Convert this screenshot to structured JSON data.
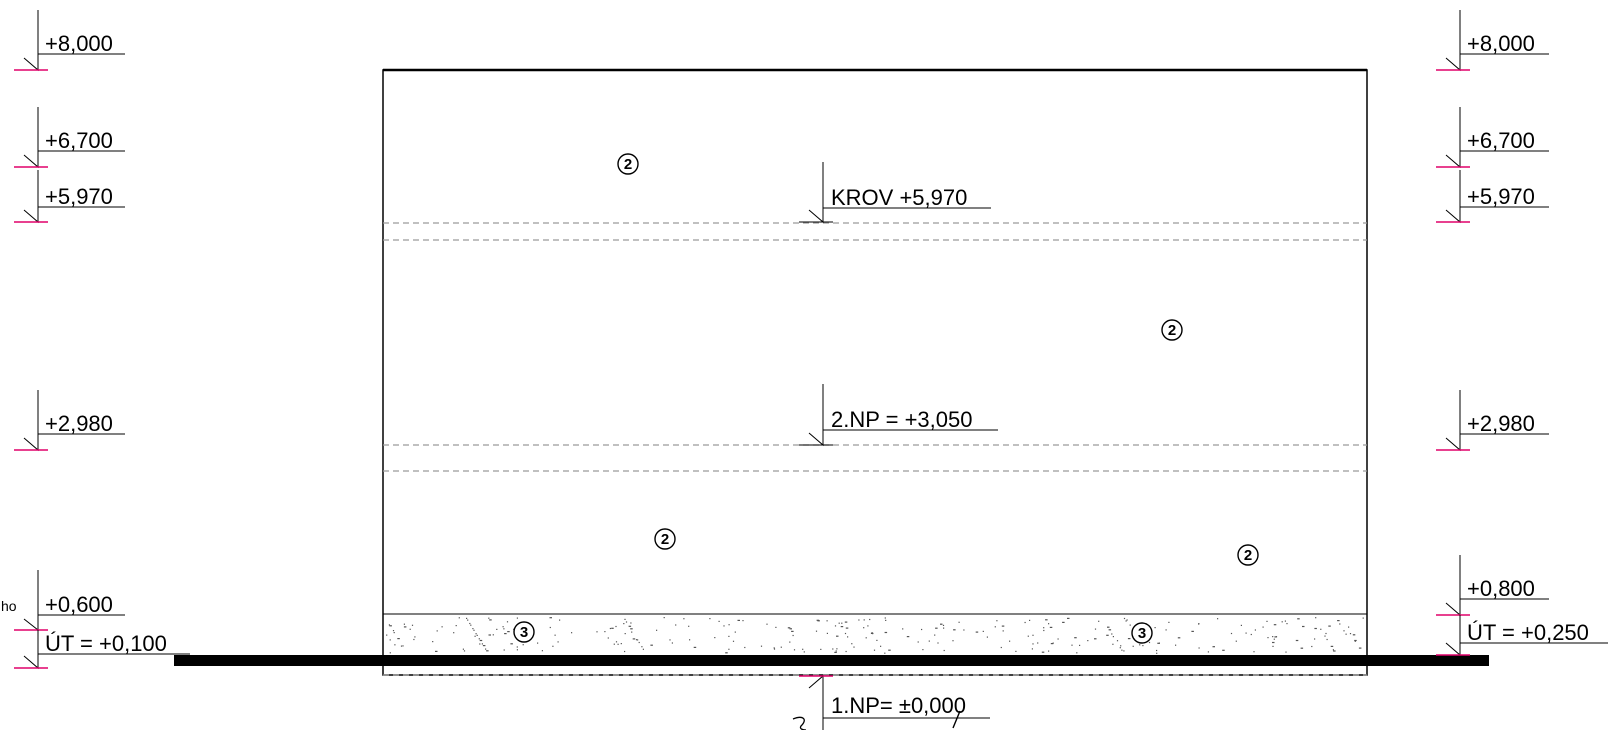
{
  "colors": {
    "line": "#000000",
    "level_tick": "#e0006a",
    "dashed": "#9a9a9a",
    "background": "#ffffff"
  },
  "left_levels": [
    {
      "id": "l-8000",
      "label": "+8,000"
    },
    {
      "id": "l-6700",
      "label": "+6,700"
    },
    {
      "id": "l-5970",
      "label": "+5,970"
    },
    {
      "id": "l-2980",
      "label": "+2,980"
    },
    {
      "id": "l-0600",
      "label": "+0,600"
    },
    {
      "id": "l-ut",
      "label": "ÚT = +0,100"
    }
  ],
  "left_cut_text": "ho",
  "right_levels": [
    {
      "id": "r-8000",
      "label": "+8,000"
    },
    {
      "id": "r-6700",
      "label": "+6,700"
    },
    {
      "id": "r-5970",
      "label": "+5,970"
    },
    {
      "id": "r-2980",
      "label": "+2,980"
    },
    {
      "id": "r-0800",
      "label": "+0,800"
    },
    {
      "id": "r-ut",
      "label": "ÚT = +0,250"
    }
  ],
  "center_levels": [
    {
      "id": "c-krov",
      "label": "KROV +5,970"
    },
    {
      "id": "c-2np",
      "label": "2.NP = +3,050"
    },
    {
      "id": "c-1np",
      "label": "1.NP= ±0,000"
    }
  ],
  "material_tags": [
    {
      "id": "tag-1",
      "number": "2"
    },
    {
      "id": "tag-2",
      "number": "2"
    },
    {
      "id": "tag-3",
      "number": "2"
    },
    {
      "id": "tag-4",
      "number": "2"
    },
    {
      "id": "tag-5",
      "number": "3"
    },
    {
      "id": "tag-6",
      "number": "3"
    }
  ]
}
